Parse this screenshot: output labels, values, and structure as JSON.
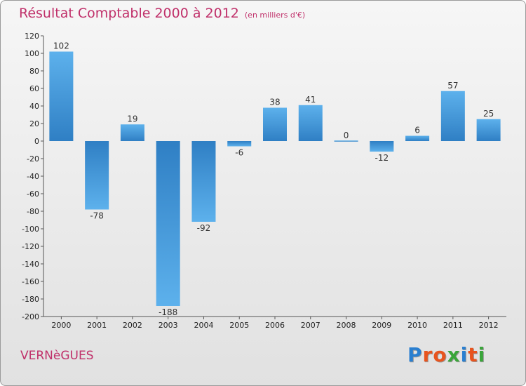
{
  "header": {
    "title": "Résultat Comptable 2000 à 2012",
    "subtitle": "(en milliers d'€)"
  },
  "footer": {
    "commune": "VERNèGUES",
    "logo": "Proxiti"
  },
  "colors": {
    "title": "#c0306a",
    "bar_dark": "#2f7fc4",
    "bar_light": "#5db1ec",
    "logo_letters": [
      "#2a7fd0",
      "#e8541e",
      "#e8541e",
      "#3aa53a",
      "#2a7fd0",
      "#e8541e",
      "#3aa53a"
    ]
  },
  "chart_data": {
    "type": "bar",
    "categories": [
      "2000",
      "2001",
      "2002",
      "2003",
      "2004",
      "2005",
      "2006",
      "2007",
      "2008",
      "2009",
      "2010",
      "2011",
      "2012"
    ],
    "values": [
      102,
      -78,
      19,
      -188,
      -92,
      -6,
      38,
      41,
      0,
      -12,
      6,
      57,
      25
    ],
    "ylim": [
      -200,
      120
    ],
    "yticks": [
      120,
      100,
      80,
      60,
      40,
      20,
      0,
      -20,
      -40,
      -60,
      -80,
      -100,
      -120,
      -140,
      -160,
      -180,
      -200
    ],
    "grid": false
  }
}
